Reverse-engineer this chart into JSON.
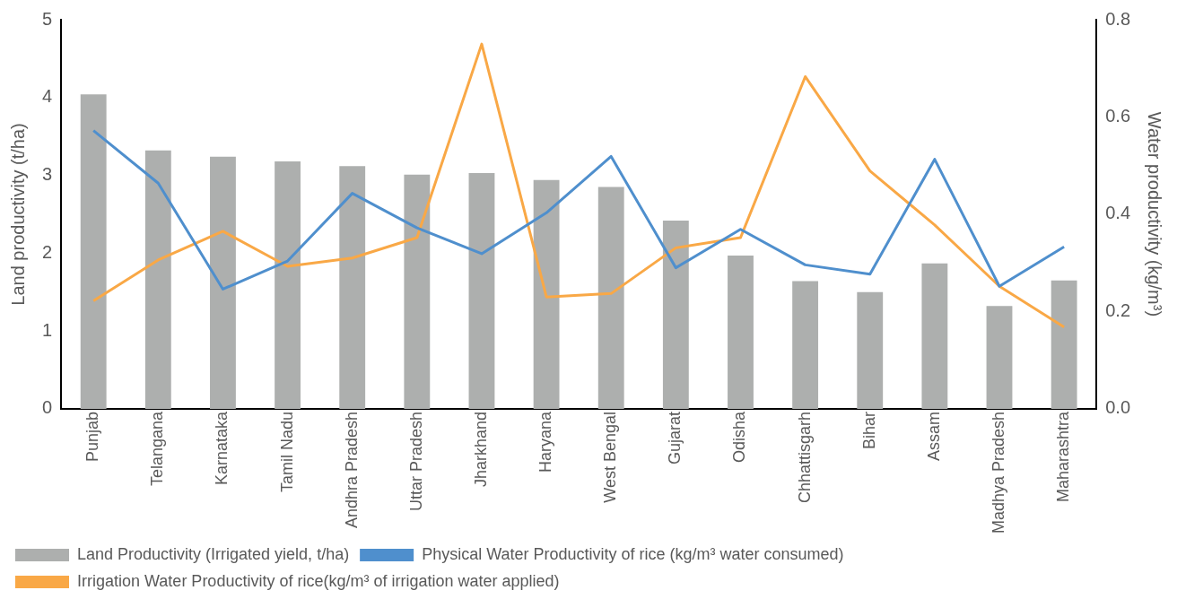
{
  "chart_data": {
    "type": "bar",
    "ylabel": "Land productivity (t/ha)",
    "y2label": "Water productivity (kg/m³)",
    "categories": [
      "Punjab",
      "Telangana",
      "Karnataka",
      "Tamil Nadu",
      "Andhra Pradesh",
      "Uttar Pradesh",
      "Jharkhand",
      "Haryana",
      "West Bengal",
      "Gujarat",
      "Odisha",
      "Chhattisgarh",
      "Bihar",
      "Assam",
      "Madhya Pradesh",
      "Maharashtra"
    ],
    "series": [
      {
        "name": "Land Productivity (Irrigated yield, t/ha)",
        "color": "#adafae",
        "values": [
          4.04,
          3.32,
          3.24,
          3.18,
          3.12,
          3.01,
          3.03,
          2.94,
          2.85,
          2.42,
          1.97,
          1.64,
          1.5,
          1.87,
          1.32,
          1.65
        ]
      },
      {
        "name": "Physical Water Productivity of rice (kg/m³ water consumed)",
        "type": "line",
        "axis": "y2",
        "color": "#4f8fcd",
        "values": [
          0.572,
          0.464,
          0.246,
          0.304,
          0.443,
          0.372,
          0.319,
          0.403,
          0.519,
          0.29,
          0.369,
          0.296,
          0.277,
          0.513,
          0.252,
          0.333
        ]
      },
      {
        "name": "Irrigation Water Productivity of rice(kg/m³ of irrigation water applied)",
        "type": "line",
        "axis": "y2",
        "color": "#f9a846",
        "values": [
          0.222,
          0.306,
          0.365,
          0.293,
          0.31,
          0.352,
          0.75,
          0.23,
          0.237,
          0.331,
          0.352,
          0.683,
          0.489,
          0.378,
          0.252,
          0.168
        ]
      }
    ],
    "ylim": [
      0,
      5
    ],
    "yticks": [
      0,
      1,
      2,
      3,
      4,
      5
    ],
    "y2lim": [
      0,
      0.8
    ],
    "y2ticks": [
      {
        "value": 0,
        "label": "0.0"
      },
      {
        "value": 0.2,
        "label": "0.2"
      },
      {
        "value": 0.4,
        "label": "0.4"
      },
      {
        "value": 0.6,
        "label": "0.6"
      },
      {
        "value": 0.8,
        "label": "0.8"
      }
    ],
    "grid": false,
    "legend": "bottom",
    "marker": "none",
    "line_style": "solid"
  }
}
